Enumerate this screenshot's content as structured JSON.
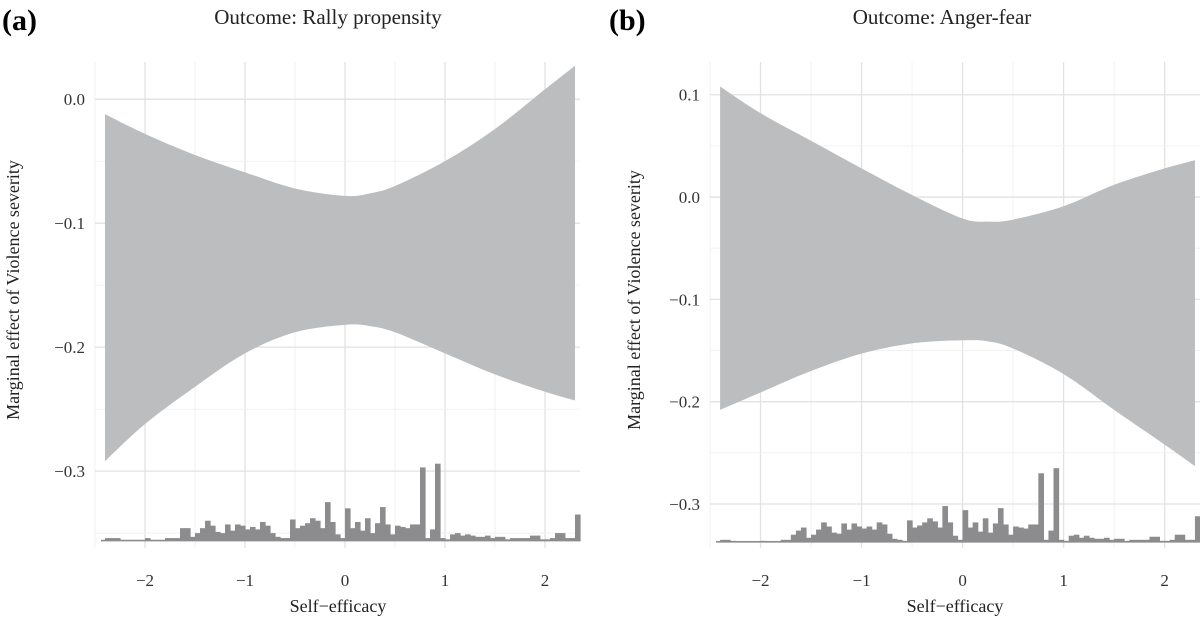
{
  "chart_data": [
    {
      "type": "area",
      "panel_label": "(a)",
      "title": "Outcome: Rally propensity",
      "xlabel": "Self−efficacy",
      "ylabel": "Marginal effect of Violence severity",
      "x_ticks": [
        -2,
        -1,
        0,
        1,
        2
      ],
      "x_tick_labels": [
        "−2",
        "−1",
        "0",
        "1",
        "2"
      ],
      "y_ticks": [
        0.0,
        -0.1,
        -0.2,
        -0.3
      ],
      "y_tick_labels": [
        "0.0",
        "−0.1",
        "−0.2",
        "−0.3"
      ],
      "xlim": [
        -2.5,
        2.35
      ],
      "ylim": [
        -0.362,
        0.03
      ],
      "band_color": "#bcbdbf",
      "hist_color": "#8c8c8e",
      "confidence_band": {
        "x": [
          -2.4,
          -2.0,
          -1.5,
          -1.0,
          -0.5,
          0.0,
          0.25,
          0.5,
          1.0,
          1.5,
          2.0,
          2.3
        ],
        "upper": [
          -0.012,
          -0.028,
          -0.045,
          -0.059,
          -0.072,
          -0.078,
          -0.076,
          -0.07,
          -0.05,
          -0.024,
          0.008,
          0.027
        ],
        "lower": [
          -0.292,
          -0.262,
          -0.232,
          -0.205,
          -0.188,
          -0.182,
          -0.183,
          -0.188,
          -0.205,
          -0.222,
          -0.236,
          -0.243
        ]
      },
      "histogram": {
        "baseline": -0.356,
        "bins": [
          [
            -2.4,
            -0.354
          ],
          [
            -2.3,
            -0.354
          ],
          [
            -2.0,
            -0.354
          ],
          [
            -1.8,
            -0.354
          ],
          [
            -1.7,
            -0.354
          ],
          [
            -1.65,
            -0.346
          ],
          [
            -1.6,
            -0.346
          ],
          [
            -1.55,
            -0.353
          ],
          [
            -1.5,
            -0.35
          ],
          [
            -1.45,
            -0.346
          ],
          [
            -1.4,
            -0.34
          ],
          [
            -1.35,
            -0.344
          ],
          [
            -1.3,
            -0.349
          ],
          [
            -1.25,
            -0.35
          ],
          [
            -1.2,
            -0.343
          ],
          [
            -1.15,
            -0.348
          ],
          [
            -1.1,
            -0.343
          ],
          [
            -1.05,
            -0.344
          ],
          [
            -1.0,
            -0.347
          ],
          [
            -0.95,
            -0.345
          ],
          [
            -0.9,
            -0.347
          ],
          [
            -0.85,
            -0.341
          ],
          [
            -0.8,
            -0.344
          ],
          [
            -0.75,
            -0.35
          ],
          [
            -0.7,
            -0.353
          ],
          [
            -0.65,
            -0.354
          ],
          [
            -0.6,
            -0.354
          ],
          [
            -0.55,
            -0.339
          ],
          [
            -0.5,
            -0.346
          ],
          [
            -0.45,
            -0.344
          ],
          [
            -0.4,
            -0.342
          ],
          [
            -0.35,
            -0.338
          ],
          [
            -0.3,
            -0.34
          ],
          [
            -0.25,
            -0.346
          ],
          [
            -0.2,
            -0.325
          ],
          [
            -0.15,
            -0.341
          ],
          [
            -0.1,
            -0.351
          ],
          [
            -0.05,
            -0.354
          ],
          [
            0.0,
            -0.33
          ],
          [
            0.05,
            -0.346
          ],
          [
            0.1,
            -0.341
          ],
          [
            0.15,
            -0.348
          ],
          [
            0.2,
            -0.338
          ],
          [
            0.25,
            -0.35
          ],
          [
            0.3,
            -0.342
          ],
          [
            0.35,
            -0.329
          ],
          [
            0.4,
            -0.343
          ],
          [
            0.45,
            -0.351
          ],
          [
            0.5,
            -0.344
          ],
          [
            0.55,
            -0.345
          ],
          [
            0.6,
            -0.346
          ],
          [
            0.65,
            -0.343
          ],
          [
            0.7,
            -0.343
          ],
          [
            0.75,
            -0.297
          ],
          [
            0.8,
            -0.354
          ],
          [
            0.85,
            -0.347
          ],
          [
            0.9,
            -0.294
          ],
          [
            0.95,
            -0.354
          ],
          [
            1.0,
            -0.355
          ],
          [
            1.05,
            -0.351
          ],
          [
            1.1,
            -0.35
          ],
          [
            1.15,
            -0.352
          ],
          [
            1.2,
            -0.351
          ],
          [
            1.25,
            -0.352
          ],
          [
            1.3,
            -0.353
          ],
          [
            1.35,
            -0.353
          ],
          [
            1.4,
            -0.352
          ],
          [
            1.45,
            -0.354
          ],
          [
            1.5,
            -0.353
          ],
          [
            1.6,
            -0.355
          ],
          [
            1.65,
            -0.354
          ],
          [
            1.75,
            -0.354
          ],
          [
            1.85,
            -0.352
          ],
          [
            1.95,
            -0.355
          ],
          [
            2.0,
            -0.355
          ],
          [
            2.05,
            -0.354
          ],
          [
            2.1,
            -0.35
          ],
          [
            2.2,
            -0.354
          ],
          [
            2.25,
            -0.354
          ],
          [
            2.3,
            -0.335
          ]
        ]
      }
    },
    {
      "type": "area",
      "panel_label": "(b)",
      "title": "Outcome: Anger-fear",
      "xlabel": "Self−efficacy",
      "ylabel": "Marginal effect of Violence severity",
      "x_ticks": [
        -2,
        -1,
        0,
        1,
        2
      ],
      "x_tick_labels": [
        "−2",
        "−1",
        "0",
        "1",
        "2"
      ],
      "y_ticks": [
        0.1,
        0.0,
        -0.1,
        -0.2,
        -0.3
      ],
      "y_tick_labels": [
        "0.1",
        "0.0",
        "−0.1",
        "−0.2",
        "−0.3"
      ],
      "xlim": [
        -2.5,
        2.35
      ],
      "ylim": [
        -0.343,
        0.132
      ],
      "band_color": "#bcbdbf",
      "hist_color": "#8c8c8e",
      "confidence_band": {
        "x": [
          -2.4,
          -2.0,
          -1.5,
          -1.0,
          -0.5,
          0.0,
          0.25,
          0.5,
          1.0,
          1.5,
          2.0,
          2.3
        ],
        "upper": [
          0.108,
          0.082,
          0.055,
          0.028,
          0.002,
          -0.021,
          -0.024,
          -0.022,
          -0.009,
          0.012,
          0.028,
          0.036
        ],
        "lower": [
          -0.208,
          -0.191,
          -0.17,
          -0.153,
          -0.143,
          -0.14,
          -0.141,
          -0.148,
          -0.173,
          -0.208,
          -0.242,
          -0.263
        ]
      },
      "histogram": {
        "baseline": -0.337,
        "bins": [
          [
            -2.4,
            -0.335
          ],
          [
            -2.3,
            -0.336
          ],
          [
            -2.0,
            -0.336
          ],
          [
            -1.8,
            -0.335
          ],
          [
            -1.7,
            -0.33
          ],
          [
            -1.65,
            -0.326
          ],
          [
            -1.6,
            -0.323
          ],
          [
            -1.55,
            -0.333
          ],
          [
            -1.5,
            -0.33
          ],
          [
            -1.45,
            -0.325
          ],
          [
            -1.4,
            -0.318
          ],
          [
            -1.35,
            -0.322
          ],
          [
            -1.3,
            -0.328
          ],
          [
            -1.25,
            -0.329
          ],
          [
            -1.2,
            -0.319
          ],
          [
            -1.15,
            -0.325
          ],
          [
            -1.1,
            -0.319
          ],
          [
            -1.05,
            -0.322
          ],
          [
            -1.0,
            -0.324
          ],
          [
            -0.95,
            -0.322
          ],
          [
            -0.9,
            -0.325
          ],
          [
            -0.85,
            -0.318
          ],
          [
            -0.8,
            -0.32
          ],
          [
            -0.75,
            -0.329
          ],
          [
            -0.7,
            -0.334
          ],
          [
            -0.65,
            -0.335
          ],
          [
            -0.6,
            -0.336
          ],
          [
            -0.55,
            -0.316
          ],
          [
            -0.5,
            -0.323
          ],
          [
            -0.45,
            -0.321
          ],
          [
            -0.4,
            -0.318
          ],
          [
            -0.35,
            -0.314
          ],
          [
            -0.3,
            -0.317
          ],
          [
            -0.25,
            -0.323
          ],
          [
            -0.2,
            -0.302
          ],
          [
            -0.15,
            -0.318
          ],
          [
            -0.1,
            -0.331
          ],
          [
            -0.05,
            -0.335
          ],
          [
            0.0,
            -0.306
          ],
          [
            0.05,
            -0.323
          ],
          [
            0.1,
            -0.318
          ],
          [
            0.15,
            -0.327
          ],
          [
            0.2,
            -0.314
          ],
          [
            0.25,
            -0.328
          ],
          [
            0.3,
            -0.319
          ],
          [
            0.35,
            -0.304
          ],
          [
            0.4,
            -0.32
          ],
          [
            0.45,
            -0.33
          ],
          [
            0.5,
            -0.322
          ],
          [
            0.55,
            -0.323
          ],
          [
            0.6,
            -0.324
          ],
          [
            0.65,
            -0.32
          ],
          [
            0.7,
            -0.32
          ],
          [
            0.75,
            -0.27
          ],
          [
            0.8,
            -0.335
          ],
          [
            0.85,
            -0.326
          ],
          [
            0.9,
            -0.265
          ],
          [
            0.95,
            -0.335
          ],
          [
            1.0,
            -0.336
          ],
          [
            1.05,
            -0.331
          ],
          [
            1.1,
            -0.33
          ],
          [
            1.15,
            -0.333
          ],
          [
            1.2,
            -0.331
          ],
          [
            1.25,
            -0.333
          ],
          [
            1.3,
            -0.334
          ],
          [
            1.35,
            -0.334
          ],
          [
            1.4,
            -0.333
          ],
          [
            1.45,
            -0.335
          ],
          [
            1.5,
            -0.334
          ],
          [
            1.6,
            -0.336
          ],
          [
            1.65,
            -0.335
          ],
          [
            1.75,
            -0.335
          ],
          [
            1.85,
            -0.332
          ],
          [
            1.95,
            -0.336
          ],
          [
            2.0,
            -0.336
          ],
          [
            2.05,
            -0.335
          ],
          [
            2.1,
            -0.33
          ],
          [
            2.2,
            -0.335
          ],
          [
            2.25,
            -0.335
          ],
          [
            2.3,
            -0.312
          ]
        ]
      }
    }
  ]
}
